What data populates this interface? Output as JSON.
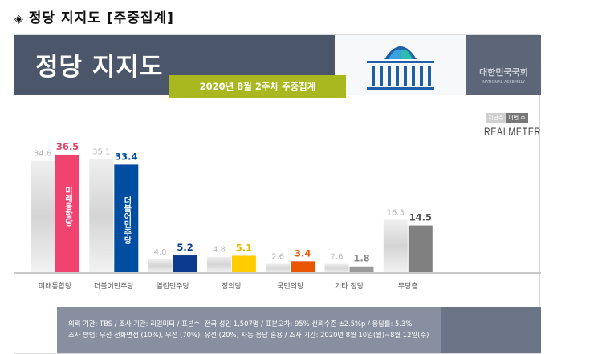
{
  "page_heading": {
    "icon": "diamond-bullet-icon",
    "text": "정당 지지도 [주중집계]"
  },
  "header": {
    "title": "정당 지지도",
    "subtitle": "2020년 8월 2주차 주중집계",
    "assembly_ko": "대한민국국회",
    "assembly_en": "NATIONAL ASSEMBLY"
  },
  "legend": {
    "prev": "지난주",
    "cur": "이번 주"
  },
  "brand": "REALMETER",
  "chart_data": {
    "type": "bar",
    "categories": [
      "미래통합당",
      "더불어민주당",
      "열린민주당",
      "정의당",
      "국민의당",
      "기타 정당",
      "무당층"
    ],
    "series": [
      {
        "name": "지난주",
        "values": [
          34.6,
          35.1,
          4.0,
          4.8,
          2.6,
          2.6,
          16.3
        ]
      },
      {
        "name": "이번 주",
        "values": [
          36.5,
          33.4,
          5.2,
          5.1,
          3.4,
          1.8,
          14.5
        ]
      }
    ],
    "colors": {
      "prev": "#dcdcdc",
      "cur": [
        "#f0436f",
        "#004ea2",
        "#0b3b8f",
        "#ffcc00",
        "#ea5504",
        "#9a9a9a",
        "#808080"
      ],
      "cur_labels": [
        "#ea3e6a",
        "#004ea2",
        "#0b3b8f",
        "#e6bb00",
        "#ea5504",
        "#888888",
        "#555555"
      ]
    },
    "ylim": [
      0,
      40
    ],
    "grid": false,
    "legend": "top-right"
  },
  "footer": {
    "line1": "의뢰 기관: TBS / 조사 기관: 리얼미터 / 표본수: 전국 성인 1,507명 / 표본오차: 95% 신뢰수준 ±2.5%p / 응답률: 5.3%",
    "line2": "조사 방법: 무선 전화면접 (10%), 무선 (70%), 유선 (20%) 자동 응답 혼용 / 조사 기간: 2020년 8월 10일(월)~8월 12일(수)"
  }
}
